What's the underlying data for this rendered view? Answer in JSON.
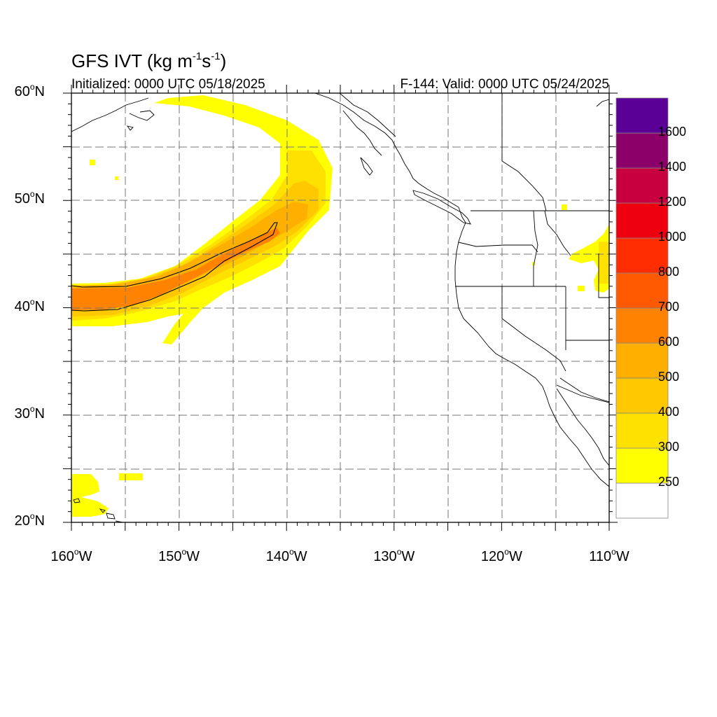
{
  "header": {
    "title_prefix": "GFS IVT (kg m",
    "title_sup1": "-1",
    "title_mid": "s",
    "title_sup2": "-1",
    "title_suffix": ")",
    "initialized": "Initialized: 0000 UTC 05/18/2025",
    "valid": "F-144: Valid: 0000 UTC 05/24/2025"
  },
  "map": {
    "projection": "cylindrical equidistant",
    "lat_range": [
      20,
      60
    ],
    "lon_range": [
      -160,
      -110
    ],
    "lat_labels": [
      {
        "value": 60,
        "num": "60",
        "dir": "N"
      },
      {
        "value": 50,
        "num": "50",
        "dir": "N"
      },
      {
        "value": 40,
        "num": "40",
        "dir": "N"
      },
      {
        "value": 30,
        "num": "30",
        "dir": "N"
      },
      {
        "value": 20,
        "num": "20",
        "dir": "N"
      }
    ],
    "lon_labels": [
      {
        "value": -160,
        "num": "160",
        "dir": "W"
      },
      {
        "value": -150,
        "num": "150",
        "dir": "W"
      },
      {
        "value": -140,
        "num": "140",
        "dir": "W"
      },
      {
        "value": -130,
        "num": "130",
        "dir": "W"
      },
      {
        "value": -120,
        "num": "120",
        "dir": "W"
      },
      {
        "value": -110,
        "num": "110",
        "dir": "W"
      }
    ],
    "grid_style": "dashed",
    "grid_spacing_deg": 5,
    "colors": {
      "c250": "#ffff00",
      "c300": "#ffe100",
      "c400": "#ffc800",
      "c500": "#ffaf00",
      "c600": "#ff8200",
      "c700": "#ff5a00",
      "coastline": "#000000",
      "grid": "#777777"
    }
  },
  "colorbar": {
    "levels": [
      "250",
      "300",
      "400",
      "500",
      "600",
      "700",
      "800",
      "1000",
      "1200",
      "1400",
      "1600"
    ],
    "colors": [
      "#ffffff",
      "#ffff00",
      "#ffe100",
      "#ffc800",
      "#ffaf00",
      "#ff8200",
      "#ff5a00",
      "#ff2d00",
      "#ee0010",
      "#c80040",
      "#8c006a",
      "#5a0096"
    ]
  }
}
